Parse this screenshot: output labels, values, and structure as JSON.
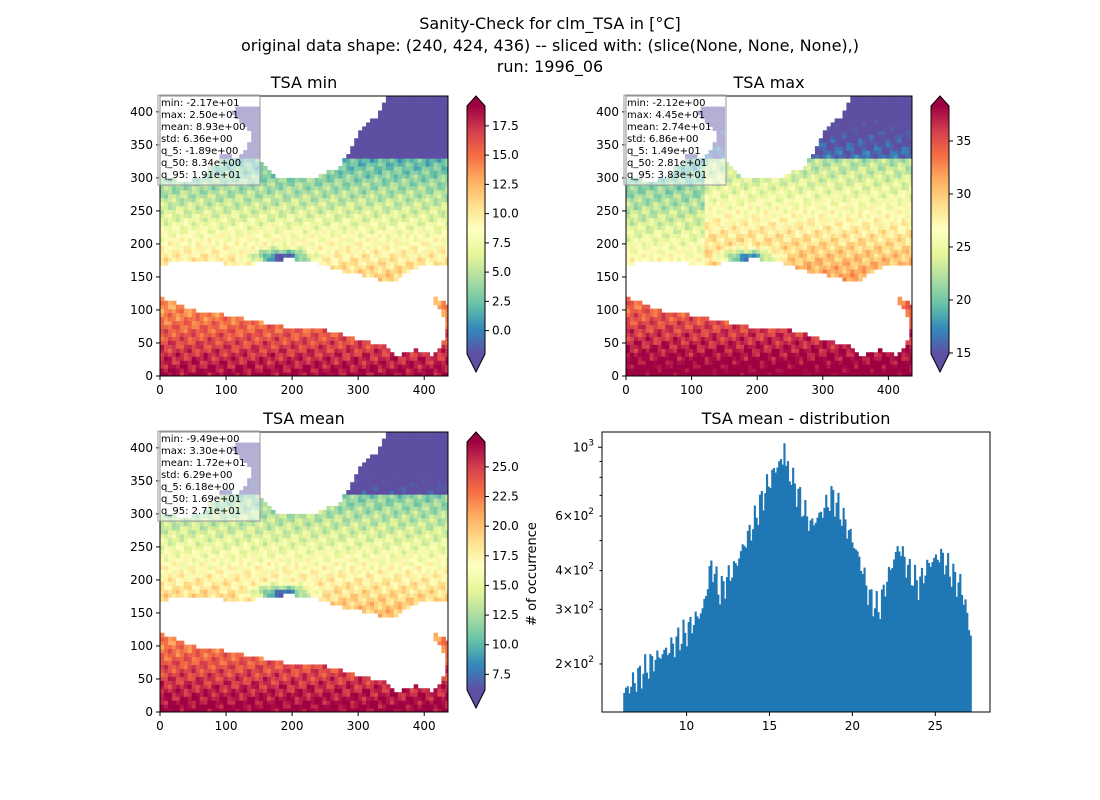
{
  "figure": {
    "title_lines": [
      "Sanity-Check for clm_TSA in [°C]",
      "original data shape: (240, 424, 436) -- sliced with: (slice(None, None, None),)",
      "run: 1996_06"
    ]
  },
  "chart_data": [
    {
      "type": "heatmap",
      "title": "TSA min",
      "xticks": [
        "0",
        "100",
        "200",
        "300",
        "400"
      ],
      "yticks": [
        "0",
        "50",
        "100",
        "150",
        "200",
        "250",
        "300",
        "350",
        "400"
      ],
      "xlim": [
        0,
        436
      ],
      "ylim": [
        0,
        424
      ],
      "colorbar": {
        "min": -2.0,
        "max": 19.2,
        "ticks": [
          "0.0",
          "2.5",
          "5.0",
          "7.5",
          "10.0",
          "12.5",
          "15.0",
          "17.5"
        ],
        "colormap": "Spectral_r",
        "extend": "both"
      },
      "stats": [
        "min: -2.17e+01",
        "max: 2.50e+01",
        "mean: 8.93e+00",
        "std: 6.36e+00",
        "q_5: -1.89e+00",
        "q_50: 8.34e+00",
        "q_95: 1.91e+01"
      ],
      "scene": "min"
    },
    {
      "type": "heatmap",
      "title": "TSA max",
      "xticks": [
        "0",
        "100",
        "200",
        "300",
        "400"
      ],
      "yticks": [
        "0",
        "50",
        "100",
        "150",
        "200",
        "250",
        "300",
        "350",
        "400"
      ],
      "xlim": [
        0,
        436
      ],
      "ylim": [
        0,
        424
      ],
      "colorbar": {
        "min": 14.9,
        "max": 38.3,
        "ticks": [
          "15",
          "20",
          "25",
          "30",
          "35"
        ],
        "colormap": "Spectral_r",
        "extend": "both"
      },
      "stats": [
        "min: -2.12e+00",
        "max: 4.45e+01",
        "mean: 2.74e+01",
        "std: 6.86e+00",
        "q_5: 1.49e+01",
        "q_50: 2.81e+01",
        "q_95: 3.83e+01"
      ],
      "scene": "max"
    },
    {
      "type": "heatmap",
      "title": "TSA mean",
      "xticks": [
        "0",
        "100",
        "200",
        "300",
        "400"
      ],
      "yticks": [
        "0",
        "50",
        "100",
        "150",
        "200",
        "250",
        "300",
        "350",
        "400"
      ],
      "xlim": [
        0,
        436
      ],
      "ylim": [
        0,
        424
      ],
      "colorbar": {
        "min": 6.18,
        "max": 27.1,
        "ticks": [
          "7.5",
          "10.0",
          "12.5",
          "15.0",
          "17.5",
          "20.0",
          "22.5",
          "25.0"
        ],
        "colormap": "Spectral_r",
        "extend": "both"
      },
      "stats": [
        "min: -9.49e+00",
        "max: 3.30e+01",
        "mean: 1.72e+01",
        "std: 6.29e+00",
        "q_5: 6.18e+00",
        "q_50: 1.69e+01",
        "q_95: 2.71e+01"
      ],
      "scene": "mean"
    },
    {
      "type": "bar",
      "title": "TSA mean - distribution",
      "ylabel": "# of occurrence",
      "xlim": [
        4.9,
        28.3
      ],
      "ylim": [
        140,
        1120
      ],
      "yscale": "log",
      "xticks": [
        10,
        15,
        20,
        25
      ],
      "xtick_labels": [
        "10",
        "15",
        "20",
        "25"
      ],
      "yticks_major": [
        {
          "value": 1000,
          "base": "10",
          "exp": "3"
        }
      ],
      "yticks_minor": [
        {
          "value": 200,
          "mantissa": "2",
          "base": "10",
          "exp": "2"
        },
        {
          "value": 300,
          "mantissa": "3",
          "base": "10",
          "exp": "2"
        },
        {
          "value": 400,
          "mantissa": "4",
          "base": "10",
          "exp": "2"
        },
        {
          "value": 600,
          "mantissa": "6",
          "base": "10",
          "exp": "2"
        }
      ],
      "bar_color": "#1f77b4",
      "bin_start": 6.18,
      "bin_width": 0.105,
      "profile": [
        [
          6.18,
          160
        ],
        [
          7.0,
          180
        ],
        [
          8.0,
          205
        ],
        [
          9.0,
          225
        ],
        [
          10.0,
          255
        ],
        [
          11.0,
          300
        ],
        [
          11.5,
          420
        ],
        [
          12.0,
          340
        ],
        [
          12.5,
          380
        ],
        [
          13.0,
          420
        ],
        [
          14.0,
          560
        ],
        [
          15.0,
          780
        ],
        [
          15.6,
          900
        ],
        [
          16.2,
          830
        ],
        [
          17.0,
          640
        ],
        [
          17.5,
          560
        ],
        [
          18.0,
          600
        ],
        [
          18.8,
          700
        ],
        [
          19.5,
          580
        ],
        [
          20.5,
          420
        ],
        [
          21.0,
          330
        ],
        [
          21.6,
          300
        ],
        [
          22.2,
          390
        ],
        [
          22.8,
          480
        ],
        [
          23.4,
          400
        ],
        [
          24.0,
          360
        ],
        [
          24.6,
          420
        ],
        [
          25.3,
          450
        ],
        [
          26.0,
          390
        ],
        [
          26.6,
          350
        ],
        [
          27.1,
          250
        ]
      ]
    }
  ]
}
